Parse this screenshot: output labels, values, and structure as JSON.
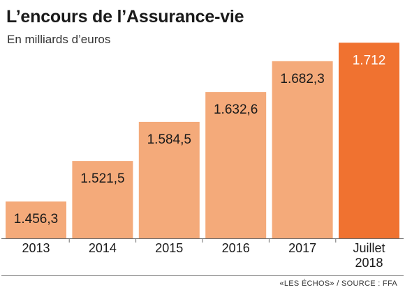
{
  "chart_data": {
    "type": "bar",
    "title": "L’encours de l’Assurance-vie",
    "subtitle": "En milliards d’euros",
    "source": "«LES ÉCHOS» / SOURCE : FFA",
    "categories": [
      "2013",
      "2014",
      "2015",
      "2016",
      "2017",
      "Juillet 2018"
    ],
    "values": [
      1456.3,
      1521.5,
      1584.5,
      1632.6,
      1682.3,
      1712
    ],
    "value_labels": [
      "1.456,3",
      "1.521,5",
      "1.584,5",
      "1.632,6",
      "1.682,3",
      "1.712"
    ],
    "colors": [
      "#f4aa7a",
      "#f4aa7a",
      "#f4aa7a",
      "#f4aa7a",
      "#f4aa7a",
      "#f07230"
    ],
    "xlabel": "",
    "ylabel": "",
    "grid": false,
    "legend": "none"
  }
}
